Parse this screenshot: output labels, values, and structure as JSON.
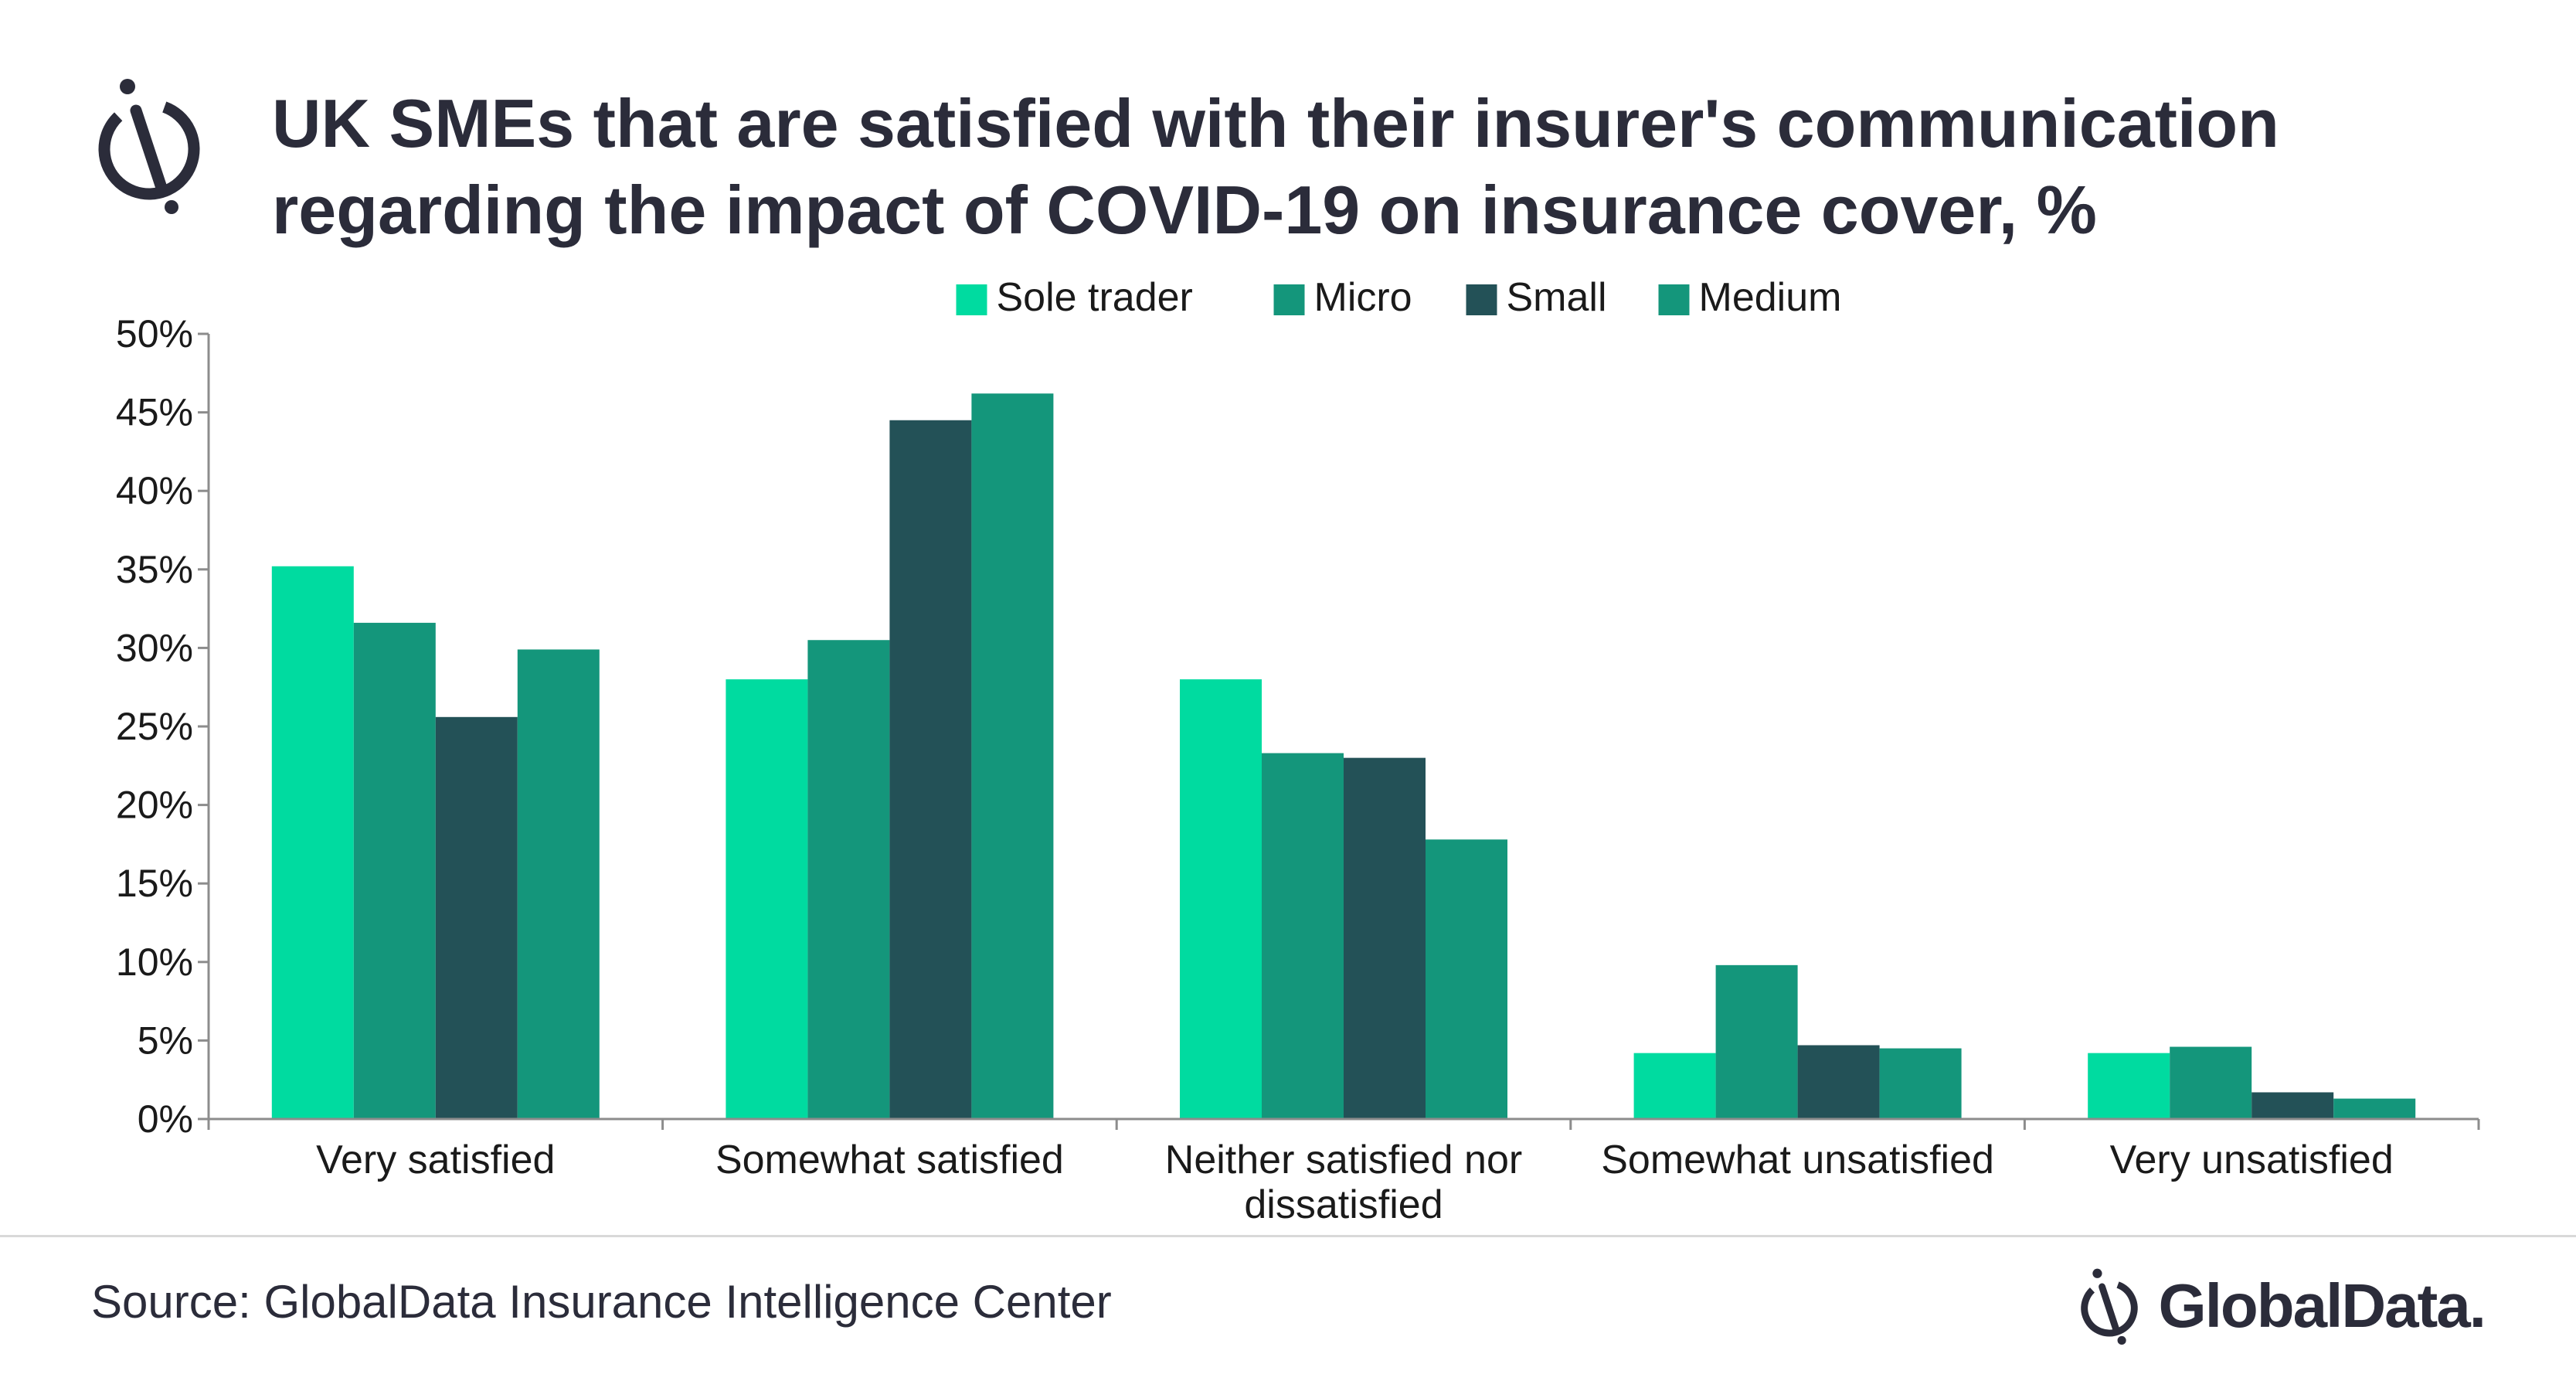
{
  "header": {
    "title_line1": "UK SMEs that are satisfied with their insurer's communication",
    "title_line2": "regarding the impact of COVID-19 on insurance cover, %",
    "logo_icon": "globaldata-mark-icon"
  },
  "footer": {
    "source": "Source: GlobalData Insurance Intelligence Center",
    "brand": "GlobalData."
  },
  "chart_data": {
    "type": "bar",
    "title": "UK SMEs that are satisfied with their insurer's communication regarding the impact of COVID-19 on insurance cover, %",
    "categories": [
      [
        "Very satisfied"
      ],
      [
        "Somewhat satisfied"
      ],
      [
        "Neither satisfied nor",
        "dissatisfied"
      ],
      [
        "Somewhat unsatisfied"
      ],
      [
        "Very unsatisfied"
      ]
    ],
    "series": [
      {
        "name": "Sole trader",
        "color": "#00dba0",
        "values": [
          35.2,
          28.0,
          28.0,
          4.2,
          4.2
        ]
      },
      {
        "name": "Micro",
        "color": "#14967b",
        "values": [
          31.6,
          30.5,
          23.3,
          9.8,
          4.6
        ]
      },
      {
        "name": "Small",
        "color": "#235157",
        "values": [
          25.6,
          44.5,
          23.0,
          4.7,
          1.7
        ]
      },
      {
        "name": "Medium",
        "color": "#14967b",
        "values": [
          29.9,
          46.2,
          17.8,
          4.5,
          1.3
        ]
      }
    ],
    "ylim": [
      0,
      50
    ],
    "yticks": [
      "0%",
      "5%",
      "10%",
      "15%",
      "20%",
      "25%",
      "30%",
      "35%",
      "40%",
      "45%",
      "50%"
    ],
    "legend_position": "top-center",
    "grid": false
  }
}
